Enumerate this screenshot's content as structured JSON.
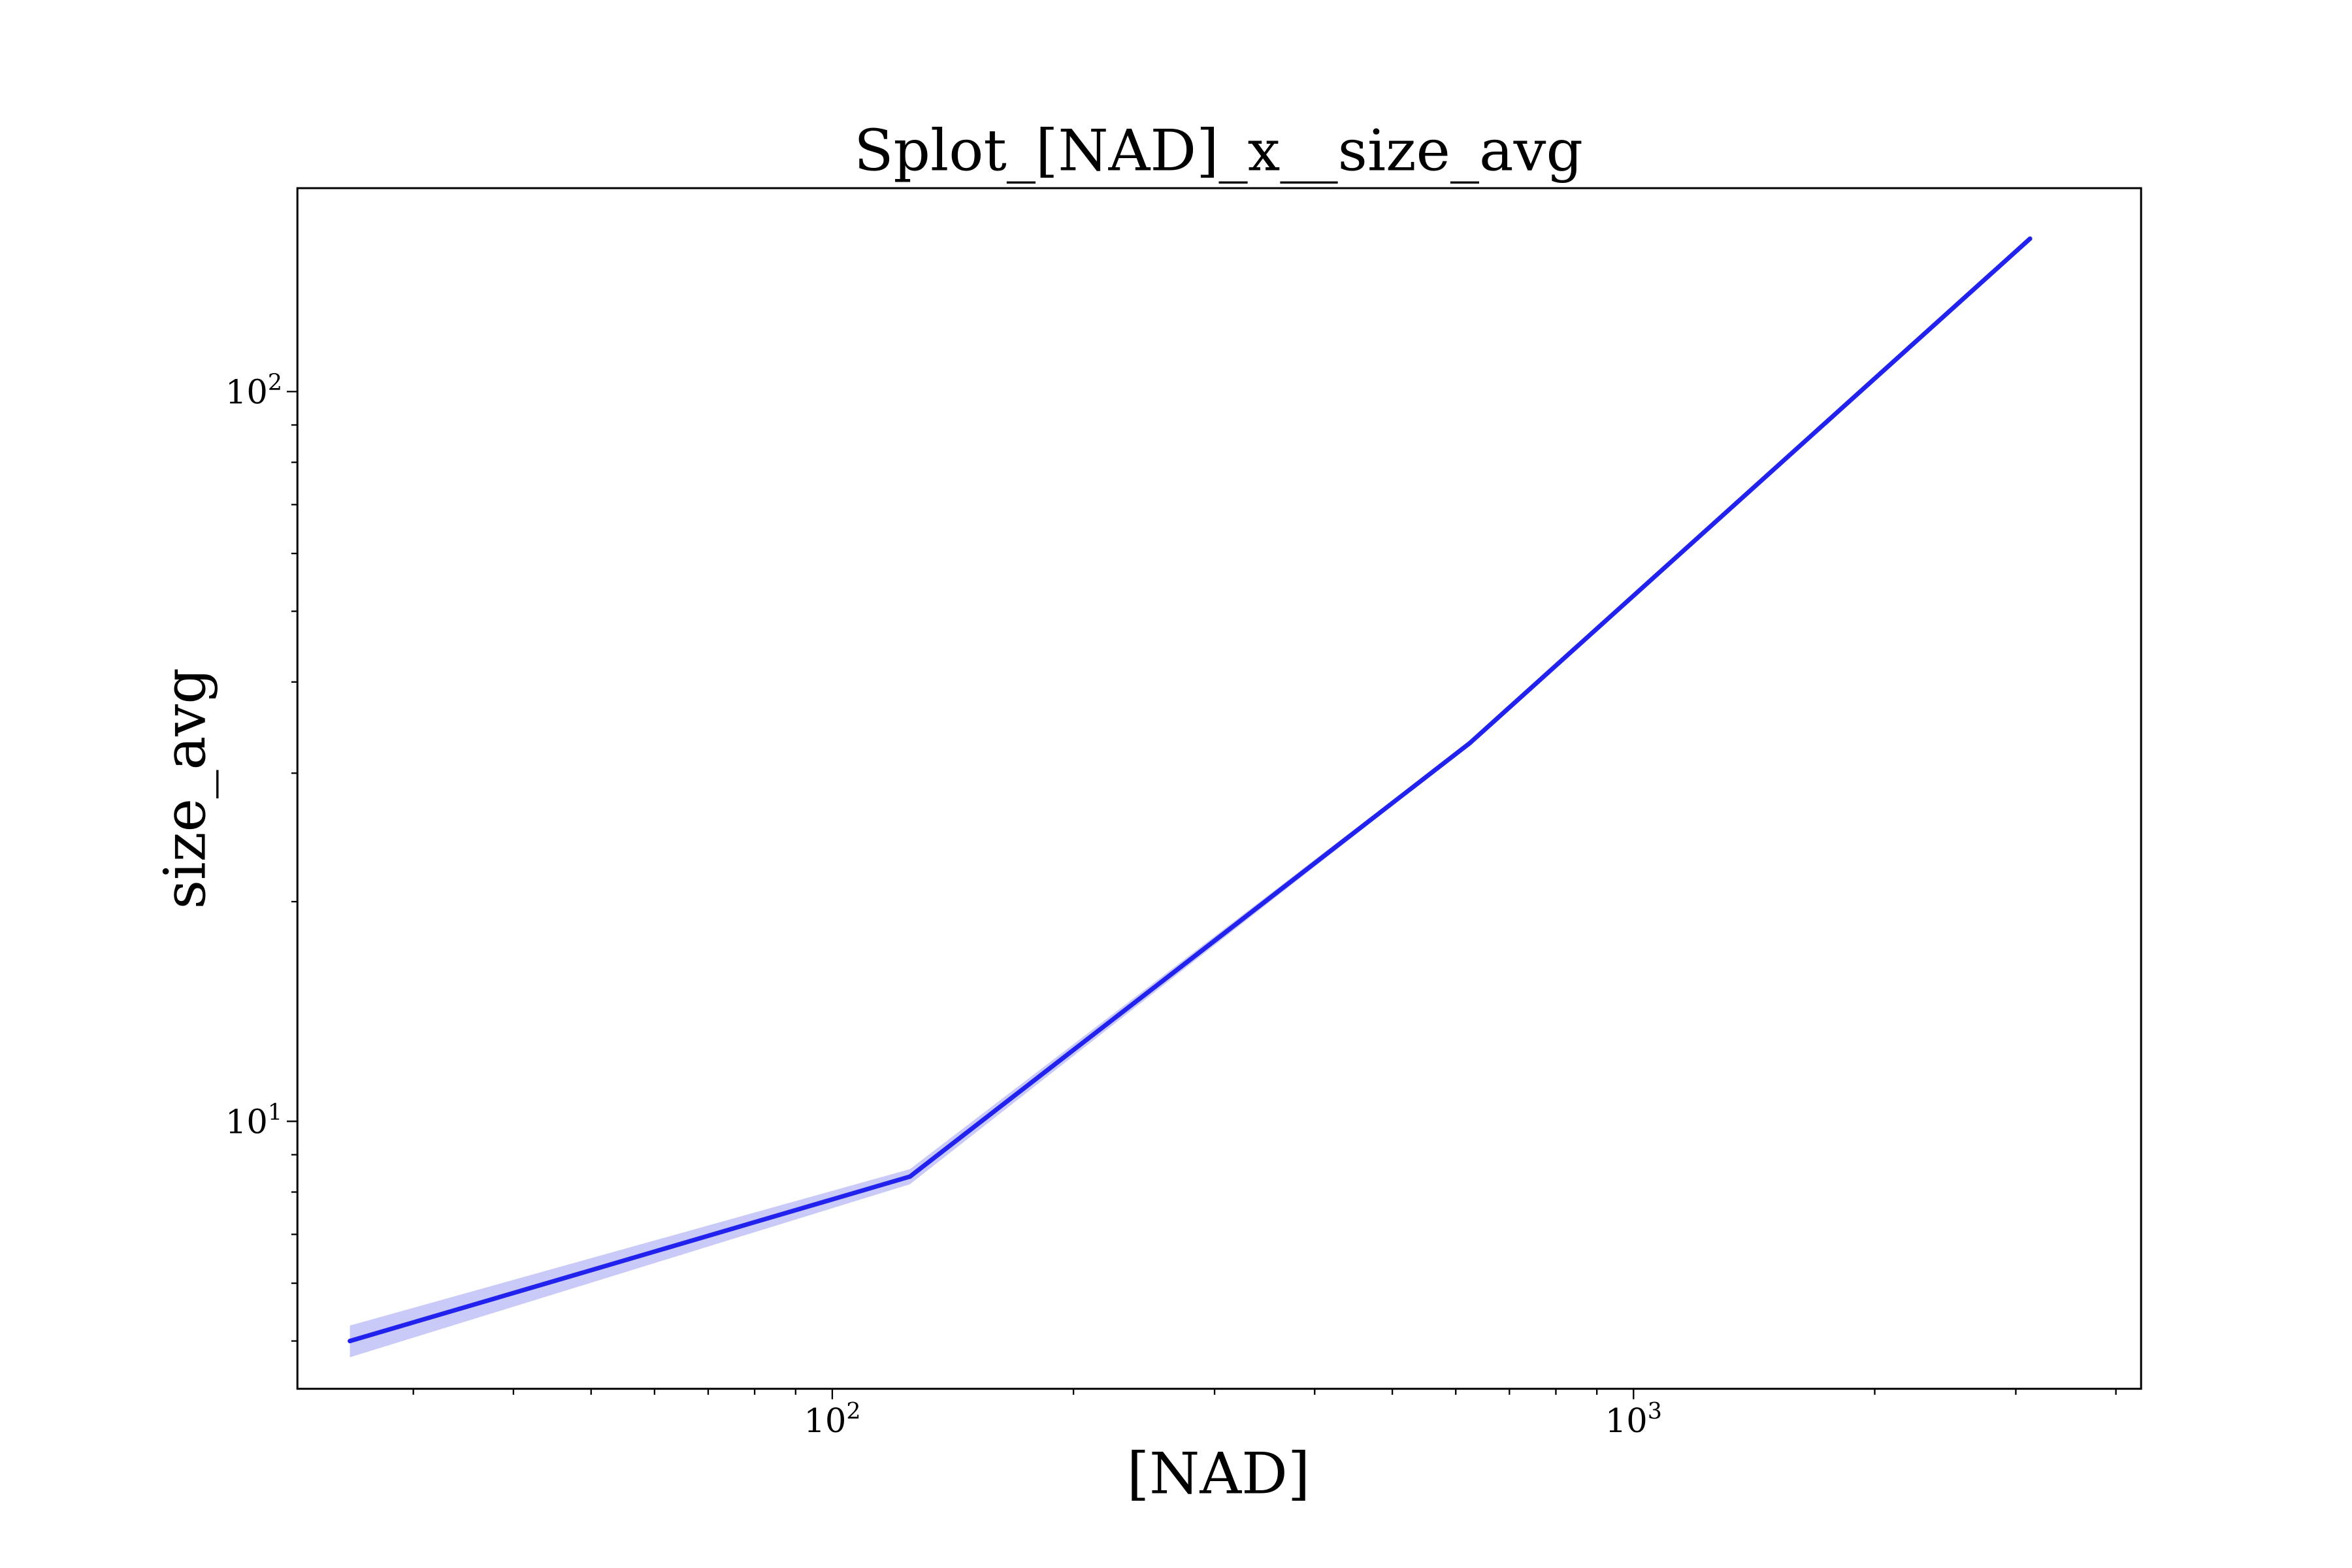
{
  "chart_data": {
    "type": "line",
    "title": "Splot_[NAD]_x__size_avg",
    "xlabel": "[NAD]",
    "ylabel": "size_avg",
    "xscale": "log",
    "yscale": "log",
    "xlim": [
      21.5,
      4300
    ],
    "ylim": [
      4.3,
      190
    ],
    "grid": false,
    "legend": "none",
    "x_ticks": [
      {
        "base": "10",
        "exp": "2",
        "value": 100
      },
      {
        "base": "10",
        "exp": "3",
        "value": 1000
      }
    ],
    "y_ticks": [
      {
        "base": "10",
        "exp": "1",
        "value": 10
      },
      {
        "base": "10",
        "exp": "2",
        "value": 100
      }
    ],
    "series": [
      {
        "color": "#2222ee",
        "band_color": "#6666ee",
        "x": [
          25,
          125,
          625,
          3125
        ],
        "y": [
          5.0,
          8.4,
          33.0,
          162.0
        ],
        "y_lower": [
          4.75,
          8.2,
          32.8,
          161.5
        ],
        "y_upper": [
          5.25,
          8.6,
          33.2,
          162.5
        ]
      }
    ]
  }
}
